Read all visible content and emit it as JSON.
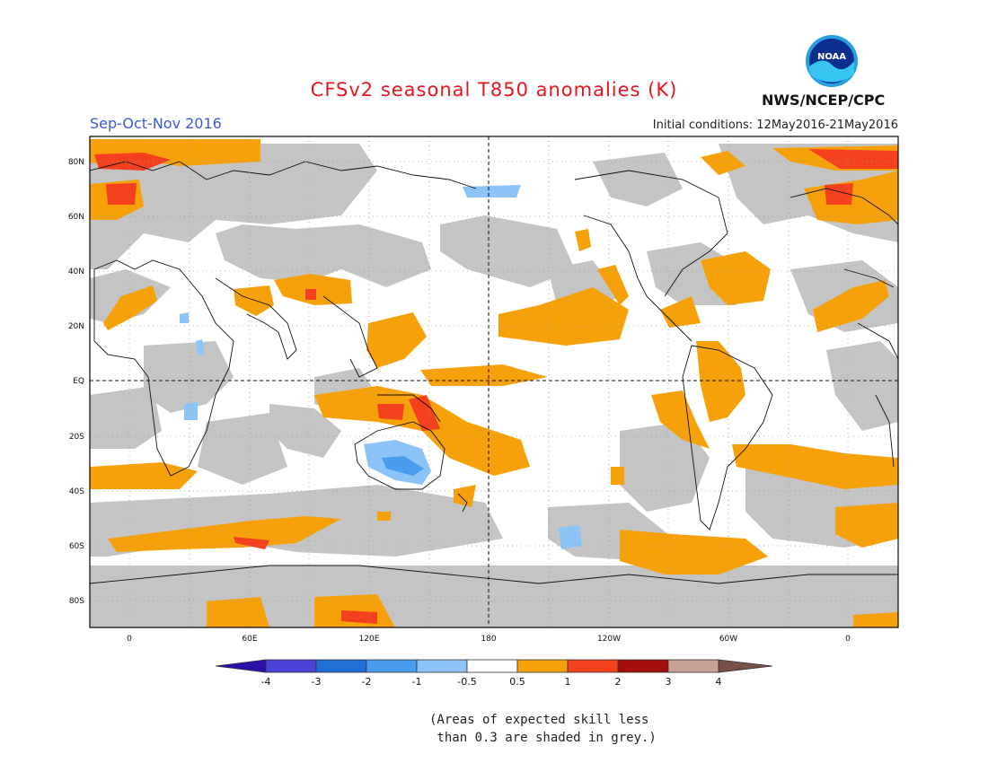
{
  "header": {
    "title": "CFSv2 seasonal T850 anomalies (K)",
    "season": "Sep-Oct-Nov 2016",
    "initial_conditions": "Initial conditions: 12May2016-21May2016",
    "agency": "NWS/NCEP/CPC",
    "logo_text": "NOAA"
  },
  "map": {
    "projection": "equirectangular, centered on 180",
    "lat_labels": [
      "80N",
      "60N",
      "40N",
      "20N",
      "EQ",
      "20S",
      "40S",
      "60S",
      "80S"
    ],
    "lon_labels": [
      "0",
      "60E",
      "120E",
      "180",
      "120W",
      "60W",
      "0"
    ],
    "reference_lines": [
      "EQ",
      "180"
    ]
  },
  "colorbar": {
    "ticks": [
      "-4",
      "-3",
      "-2",
      "-1",
      "-0.5",
      "0.5",
      "1",
      "2",
      "3",
      "4"
    ],
    "colors": [
      "#2a0fa8",
      "#4a43d6",
      "#1f6fd6",
      "#4a9cf0",
      "#8cc4f7",
      "#ffffff",
      "#f7a10a",
      "#f5401e",
      "#a50f0f",
      "#c8a094",
      "#7a5046"
    ]
  },
  "legend_colors": {
    "grey_low_skill": "#c4c4c4",
    "pos_0.5_1": "#f7a10a",
    "pos_1_2": "#f5401e",
    "neg_0.5_1": "#8cc4f7",
    "neg_1_2": "#4a9cf0"
  },
  "footnote": {
    "line1": "(Areas of expected skill less",
    "line2": " than 0.3 are shaded in grey.)"
  }
}
